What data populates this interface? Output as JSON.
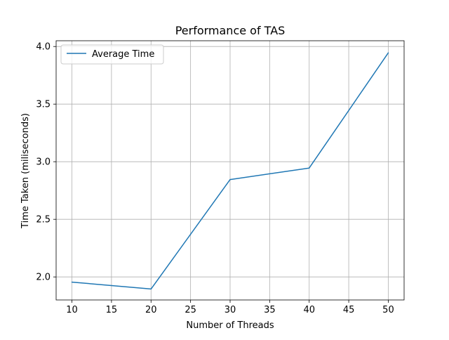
{
  "chart_data": {
    "type": "line",
    "title": "Performance of TAS",
    "xlabel": "Number of Threads",
    "ylabel": "Time Taken (miliseconds)",
    "x": [
      10,
      20,
      30,
      40,
      50
    ],
    "series": [
      {
        "name": "Average Time",
        "values": [
          1.955,
          1.895,
          2.845,
          2.945,
          3.945
        ],
        "color": "#1f77b4"
      }
    ],
    "xlim": [
      8,
      52
    ],
    "ylim": [
      1.8,
      4.05
    ],
    "xticks": [
      10,
      15,
      20,
      25,
      30,
      35,
      40,
      45,
      50
    ],
    "xtick_labels": [
      "10",
      "15",
      "20",
      "25",
      "30",
      "35",
      "40",
      "45",
      "50"
    ],
    "yticks": [
      2.0,
      2.5,
      3.0,
      3.5,
      4.0
    ],
    "ytick_labels": [
      "2.0",
      "2.5",
      "3.0",
      "3.5",
      "4.0"
    ],
    "grid": true,
    "legend_position": "top-left"
  }
}
